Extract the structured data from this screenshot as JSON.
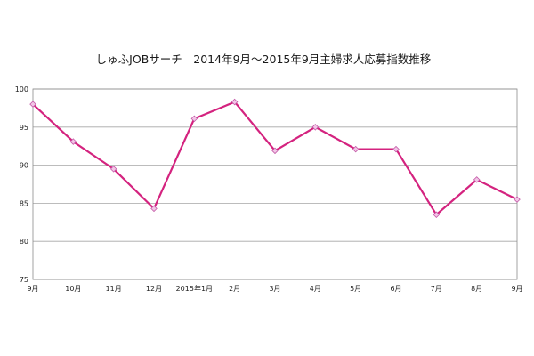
{
  "chart_data": {
    "type": "line",
    "title": "しゅふJOBサーチ　2014年9月～2015年9月主婦求人応募指数推移",
    "xlabel": "",
    "ylabel": "",
    "categories": [
      "9月",
      "10月",
      "11月",
      "12月",
      "2015年1月",
      "2月",
      "3月",
      "4月",
      "5月",
      "6月",
      "7月",
      "8月",
      "9月"
    ],
    "series": [
      {
        "values": [
          98.0,
          93.1,
          89.5,
          84.3,
          96.1,
          98.3,
          91.9,
          95.0,
          92.1,
          92.1,
          83.5,
          88.1,
          85.5
        ]
      }
    ],
    "ylim": [
      75,
      100
    ],
    "yticks": [
      75,
      80,
      85,
      90,
      95,
      100
    ],
    "grid": true,
    "legend": "none",
    "colors": {
      "line": "#d4237f",
      "marker_fill": "#f2c6e6",
      "marker_stroke": "#c45aa8"
    }
  }
}
